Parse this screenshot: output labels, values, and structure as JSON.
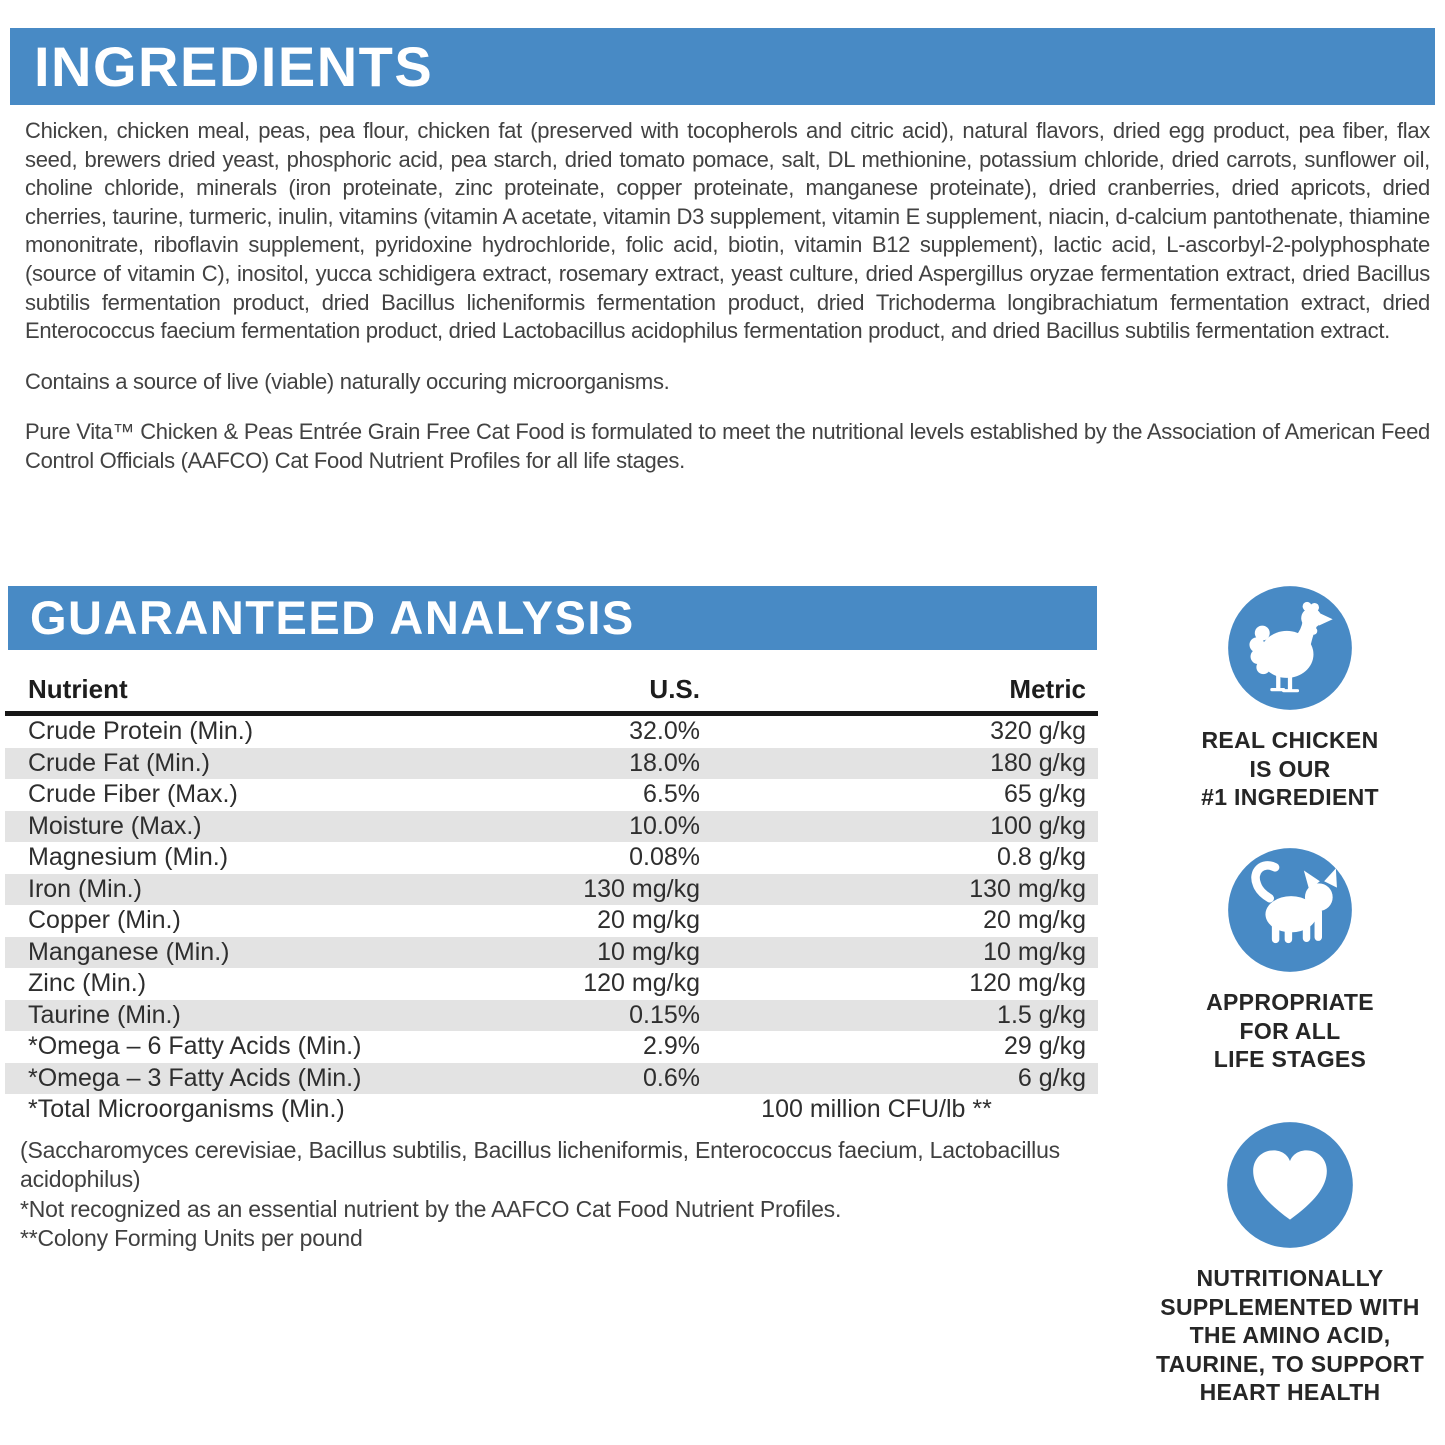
{
  "page": {
    "accent_blue": "#488ac5",
    "stripe_gray": "#e3e3e3"
  },
  "ingredients": {
    "title": "INGREDIENTS",
    "body": "Chicken, chicken meal, peas, pea flour, chicken fat (preserved with tocopherols and citric acid), natural flavors, dried egg product, pea fiber, flax seed, brewers dried yeast, phosphoric acid, pea starch, dried tomato pomace, salt, DL methionine, potassium chloride, dried carrots, sunflower oil, choline chloride, minerals (iron proteinate, zinc proteinate, copper proteinate, manganese proteinate), dried cranberries, dried apricots, dried cherries, taurine, turmeric, inulin, vitamins (vitamin A acetate, vitamin D3 supplement, vitamin E supplement, niacin, d-calcium pantothenate, thiamine mononitrate, riboflavin supplement, pyridoxine hydrochloride, folic acid, biotin, vitamin B12 supplement), lactic acid, L-ascorbyl-2-polyphosphate (source of vitamin C), inositol, yucca schidigera extract, rosemary extract, yeast culture, dried Aspergillus oryzae fermentation extract, dried Bacillus subtilis fermentation product, dried Bacillus licheniformis fermentation product, dried Trichoderma longibrachiatum fermentation extract, dried Enterococcus faecium fermentation product, dried Lactobacillus acidophilus fermentation product, and dried Bacillus subtilis fermentation extract.",
    "note1": "Contains a source of live (viable) naturally occuring microorganisms.",
    "note2": "Pure Vita™ Chicken & Peas Entrée Grain Free Cat Food is formulated to meet the nutritional levels established by the Association of American Feed Control Officials (AAFCO) Cat Food Nutrient Profiles for all life stages."
  },
  "analysis": {
    "title": "GUARANTEED ANALYSIS",
    "columns": [
      "Nutrient",
      "U.S.",
      "Metric"
    ],
    "rows": [
      {
        "nutrient": "Crude Protein (Min.)",
        "us": "32.0%",
        "metric": "320 g/kg"
      },
      {
        "nutrient": "Crude Fat (Min.)",
        "us": "18.0%",
        "metric": "180 g/kg"
      },
      {
        "nutrient": "Crude Fiber (Max.)",
        "us": "6.5%",
        "metric": "65 g/kg"
      },
      {
        "nutrient": "Moisture (Max.)",
        "us": "10.0%",
        "metric": "100 g/kg"
      },
      {
        "nutrient": "Magnesium (Min.)",
        "us": "0.08%",
        "metric": "0.8 g/kg"
      },
      {
        "nutrient": "Iron (Min.)",
        "us": "130 mg/kg",
        "metric": "130 mg/kg"
      },
      {
        "nutrient": "Copper (Min.)",
        "us": "20 mg/kg",
        "metric": "20 mg/kg"
      },
      {
        "nutrient": "Manganese (Min.)",
        "us": "10 mg/kg",
        "metric": "10 mg/kg"
      },
      {
        "nutrient": "Zinc (Min.)",
        "us": "120 mg/kg",
        "metric": "120 mg/kg"
      },
      {
        "nutrient": "Taurine (Min.)",
        "us": "0.15%",
        "metric": "1.5 g/kg"
      },
      {
        "nutrient": "*Omega – 6 Fatty Acids (Min.)",
        "us": "2.9%",
        "metric": "29 g/kg"
      },
      {
        "nutrient": "*Omega – 3 Fatty Acids (Min.)",
        "us": "0.6%",
        "metric": "6 g/kg"
      },
      {
        "nutrient": "*Total Microorganisms (Min.)",
        "us": "100 million CFU/lb **",
        "metric": ""
      }
    ],
    "footnotes": [
      "(Saccharomyces cerevisiae, Bacillus subtilis, Bacillus licheniformis, Enterococcus faecium, Lactobacillus acidophilus)",
      "*Not recognized as an essential nutrient by the AAFCO Cat Food Nutrient Profiles.",
      "**Colony Forming Units per pound"
    ]
  },
  "badges": [
    {
      "icon": "chicken-icon",
      "caption": "REAL CHICKEN\nIS OUR\n#1 INGREDIENT"
    },
    {
      "icon": "cat-icon",
      "caption": "APPROPRIATE\nFOR ALL\nLIFE STAGES"
    },
    {
      "icon": "heart-icon",
      "caption": "NUTRITIONALLY\nSUPPLEMENTED WITH\nTHE AMINO ACID,\nTAURINE, TO SUPPORT\nHEART HEALTH"
    }
  ]
}
